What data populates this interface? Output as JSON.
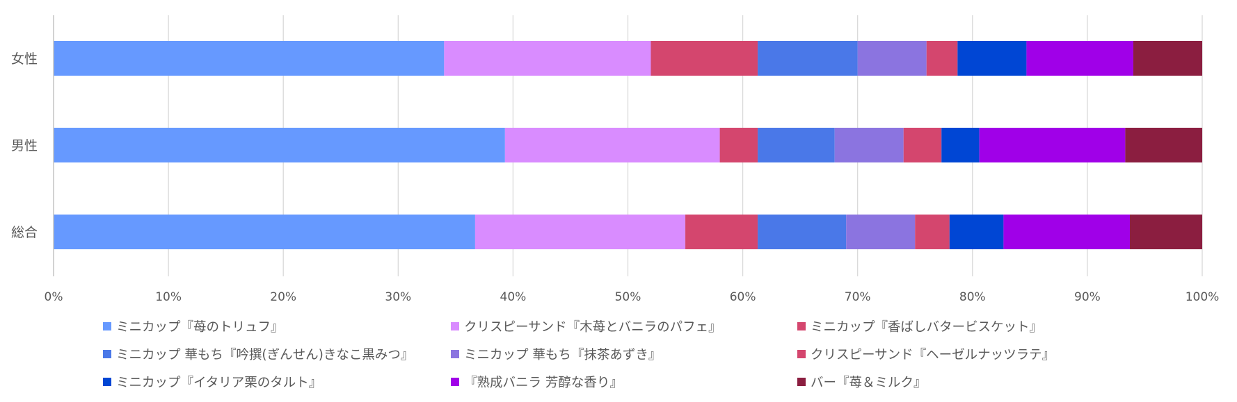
{
  "chart_data": {
    "type": "bar",
    "orientation": "horizontal",
    "stacked": "percent",
    "categories": [
      "女性",
      "男性",
      "総合"
    ],
    "xlim": [
      0,
      100
    ],
    "x_ticks": [
      "0%",
      "10%",
      "20%",
      "30%",
      "40%",
      "50%",
      "60%",
      "70%",
      "80%",
      "90%",
      "100%"
    ],
    "grid": "vertical",
    "legend_position": "bottom",
    "series": [
      {
        "name": "ミニカップ『苺のトリュフ』",
        "color": "#6699FF",
        "values": [
          34.0,
          39.3,
          36.7
        ]
      },
      {
        "name": "クリスピーサンド『木苺とバニラのパフェ』",
        "color": "#D98CFF",
        "values": [
          18.0,
          18.7,
          18.3
        ]
      },
      {
        "name": "ミニカップ『香ばしバタービスケット』",
        "color": "#D4466E",
        "values": [
          9.3,
          3.3,
          6.3
        ]
      },
      {
        "name": "ミニカップ 華もち『吟撰(ぎんせん)きなこ黒みつ』",
        "color": "#4A78E8",
        "values": [
          8.7,
          6.7,
          7.7
        ]
      },
      {
        "name": "ミニカップ 華もち『抹茶あずき』",
        "color": "#8B74E0",
        "values": [
          6.0,
          6.0,
          6.0
        ]
      },
      {
        "name": "クリスピーサンド『ヘーゼルナッツラテ』",
        "color": "#D4466E",
        "values": [
          2.7,
          3.3,
          3.0
        ]
      },
      {
        "name": "ミニカップ『イタリア栗のタルト』",
        "color": "#0046D4",
        "values": [
          6.0,
          3.3,
          4.7
        ]
      },
      {
        "name": "『熟成バニラ 芳醇な香り』",
        "color": "#A000E8",
        "values": [
          9.3,
          12.7,
          11.0
        ]
      },
      {
        "name": "バー『苺＆ミルク』",
        "color": "#8B1E40",
        "values": [
          6.0,
          6.7,
          6.3
        ]
      }
    ]
  }
}
